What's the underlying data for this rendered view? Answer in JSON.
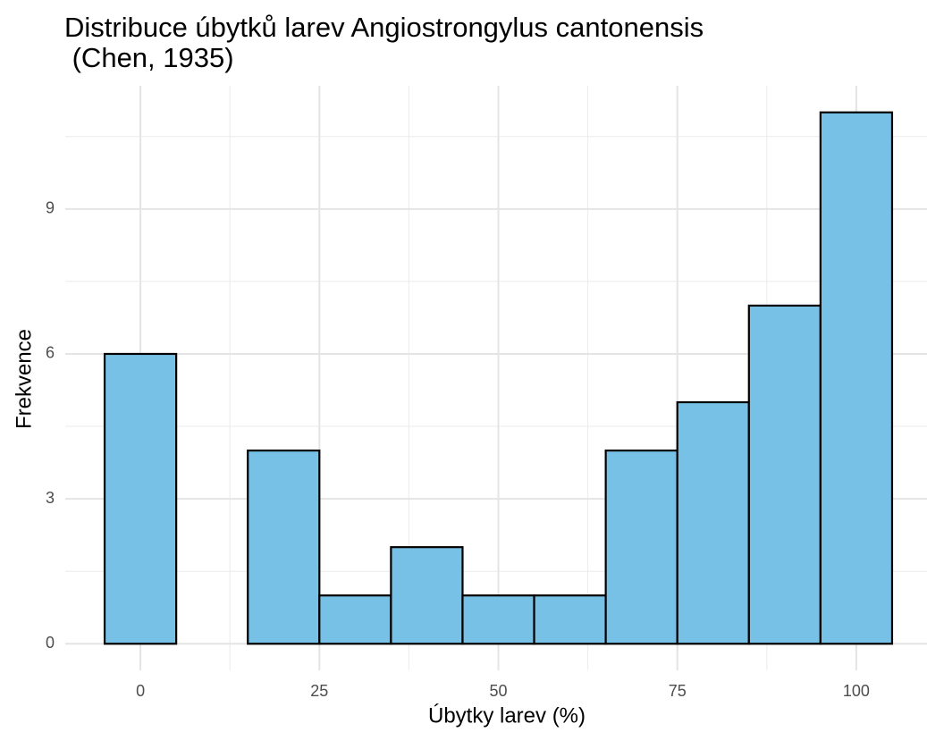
{
  "chart_data": {
    "type": "histogram",
    "title": "Distribuce úbytků larev Angiostrongylus cantonensis\n (Chen, 1935)",
    "xlabel": "Úbytky larev (%)",
    "ylabel": "Frekvence",
    "bins": [
      -5,
      5,
      15,
      25,
      35,
      45,
      55,
      65,
      75,
      85,
      95,
      105
    ],
    "values": [
      6,
      0,
      4,
      1,
      2,
      1,
      1,
      4,
      5,
      7,
      11
    ],
    "color": "#77c1e6",
    "edgecolor": "#000000",
    "xlim": [
      -10.5,
      110.5
    ],
    "xticks": [
      0,
      25,
      50,
      75,
      100
    ],
    "x_minor_ticks": [
      -12.5,
      12.5,
      37.5,
      62.5,
      87.5
    ],
    "ylim": [
      -0.55,
      11.55
    ],
    "yticks": [
      0,
      3,
      6,
      9
    ],
    "y_minor_ticks": [
      1.5,
      4.5,
      7.5,
      10.5
    ],
    "grid": true
  }
}
